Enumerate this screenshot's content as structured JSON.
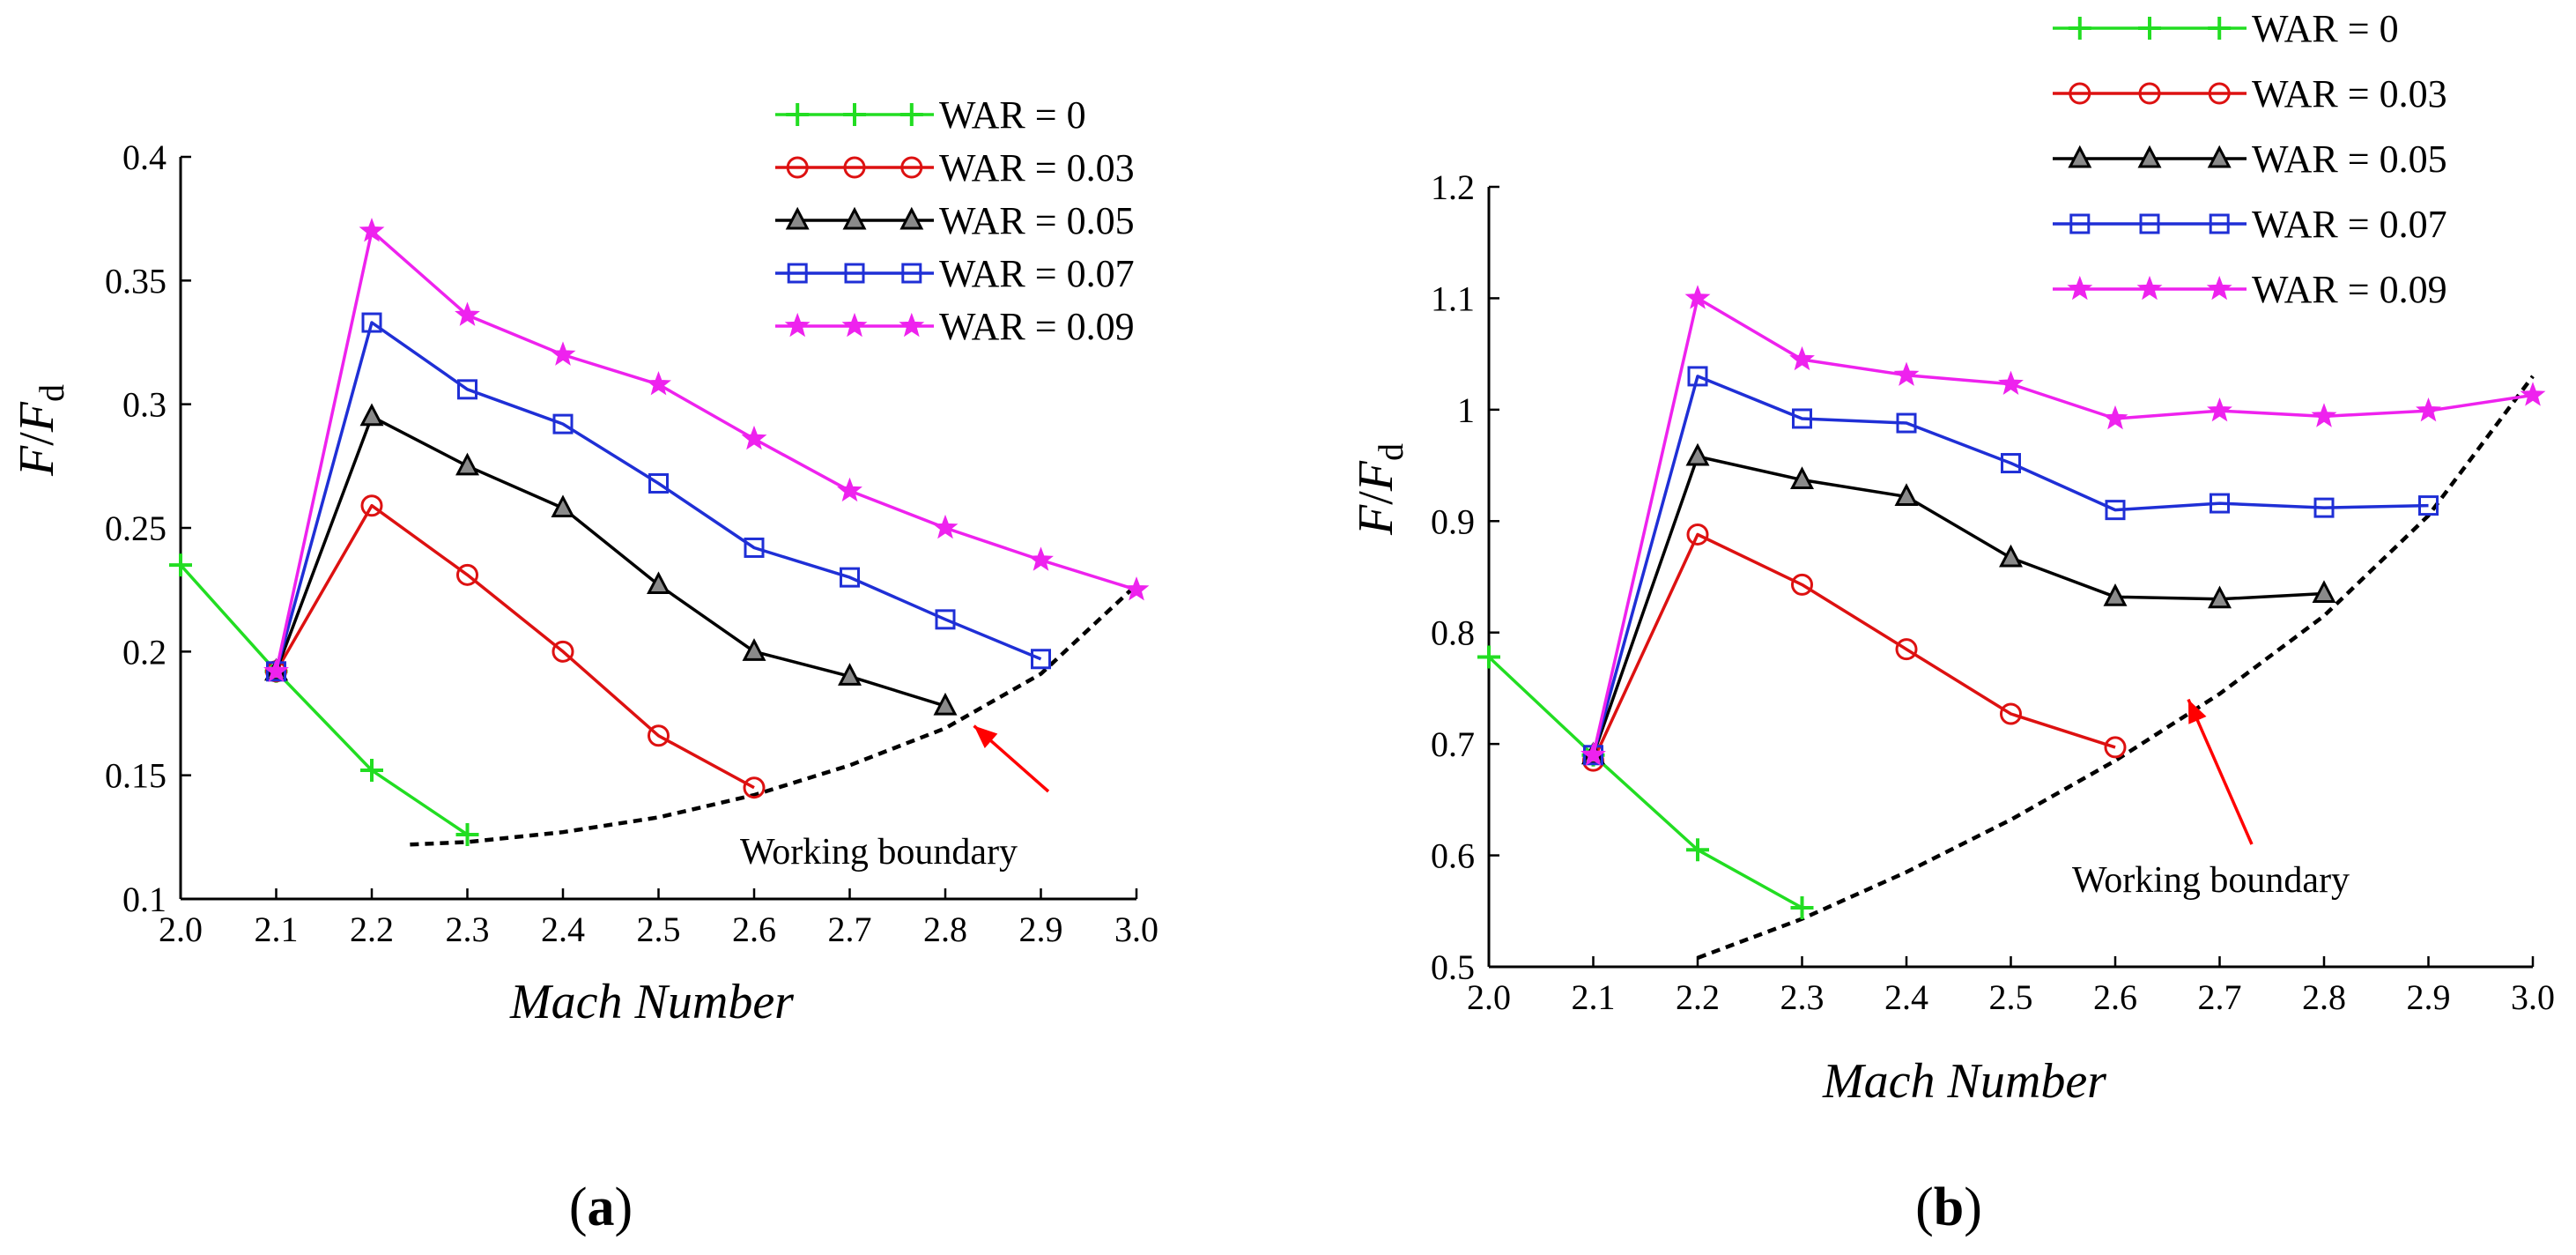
{
  "chart_data": [
    {
      "type": "line",
      "panel_label": {
        "open": "(",
        "letter": "a",
        "close": ")"
      },
      "title": "",
      "xlabel": "Mach Number",
      "ylabel": {
        "main": "F",
        "slash": "/",
        "F": "F",
        "sub": "d"
      },
      "xlim": [
        2.0,
        3.0
      ],
      "ylim": [
        0.1,
        0.4
      ],
      "xticks": [
        "2.0",
        "2.1",
        "2.2",
        "2.3",
        "2.4",
        "2.5",
        "2.6",
        "2.7",
        "2.8",
        "2.9",
        "3.0"
      ],
      "yticks": [
        "0.1",
        "0.15",
        "0.2",
        "0.25",
        "0.3",
        "0.35",
        "0.4"
      ],
      "legend_position": "top-right",
      "series": [
        {
          "name": "WAR = 0",
          "color": "#22dd22",
          "marker": "plus",
          "x": [
            2.0,
            2.1,
            2.2,
            2.3
          ],
          "y": [
            0.235,
            0.192,
            0.152,
            0.126
          ]
        },
        {
          "name": "WAR = 0.03",
          "color": "#dd1111",
          "marker": "circle",
          "x": [
            2.1,
            2.2,
            2.3,
            2.4,
            2.5,
            2.6
          ],
          "y": [
            0.192,
            0.259,
            0.231,
            0.2,
            0.166,
            0.145
          ]
        },
        {
          "name": "WAR = 0.05",
          "color": "#000000",
          "marker": "triangle",
          "x": [
            2.1,
            2.2,
            2.3,
            2.4,
            2.5,
            2.6,
            2.7,
            2.8
          ],
          "y": [
            0.192,
            0.295,
            0.275,
            0.258,
            0.227,
            0.2,
            0.19,
            0.178
          ]
        },
        {
          "name": "WAR = 0.07",
          "color": "#1f2fd6",
          "marker": "square",
          "x": [
            2.1,
            2.2,
            2.3,
            2.4,
            2.5,
            2.6,
            2.7,
            2.8,
            2.9
          ],
          "y": [
            0.192,
            0.333,
            0.306,
            0.292,
            0.268,
            0.242,
            0.23,
            0.213,
            0.197
          ]
        },
        {
          "name": "WAR = 0.09",
          "color": "#ee22ee",
          "marker": "star",
          "x": [
            2.1,
            2.2,
            2.3,
            2.4,
            2.5,
            2.6,
            2.7,
            2.8,
            2.9,
            3.0
          ],
          "y": [
            0.192,
            0.37,
            0.336,
            0.32,
            0.308,
            0.286,
            0.265,
            0.25,
            0.237,
            0.225
          ]
        }
      ],
      "boundary": {
        "label": "Working boundary",
        "x": [
          2.24,
          2.3,
          2.4,
          2.5,
          2.6,
          2.7,
          2.8,
          2.9,
          3.0
        ],
        "y": [
          0.122,
          0.123,
          0.127,
          0.133,
          0.142,
          0.154,
          0.169,
          0.191,
          0.227
        ],
        "arrow_to": [
          2.83,
          0.17
        ]
      }
    },
    {
      "type": "line",
      "panel_label": {
        "open": "(",
        "letter": "b",
        "close": ")"
      },
      "title": "",
      "xlabel": "Mach Number",
      "ylabel": {
        "main": "F",
        "slash": "/",
        "F": "F",
        "sub": "d"
      },
      "xlim": [
        2.0,
        3.0
      ],
      "ylim": [
        0.5,
        1.2
      ],
      "xticks": [
        "2.0",
        "2.1",
        "2.2",
        "2.3",
        "2.4",
        "2.5",
        "2.6",
        "2.7",
        "2.8",
        "2.9",
        "3.0"
      ],
      "yticks": [
        "0.5",
        "0.6",
        "0.7",
        "0.8",
        "0.9",
        "1",
        "1.1",
        "1.2"
      ],
      "legend_position": "top-right",
      "series": [
        {
          "name": "WAR = 0",
          "color": "#22dd22",
          "marker": "plus",
          "x": [
            2.0,
            2.1,
            2.2,
            2.3
          ],
          "y": [
            0.778,
            0.69,
            0.605,
            0.553
          ]
        },
        {
          "name": "WAR = 0.03",
          "color": "#dd1111",
          "marker": "circle",
          "x": [
            2.1,
            2.2,
            2.3,
            2.4,
            2.5,
            2.6
          ],
          "y": [
            0.685,
            0.888,
            0.843,
            0.785,
            0.727,
            0.697
          ]
        },
        {
          "name": "WAR = 0.05",
          "color": "#000000",
          "marker": "triangle",
          "x": [
            2.1,
            2.2,
            2.3,
            2.4,
            2.5,
            2.6,
            2.7,
            2.8
          ],
          "y": [
            0.69,
            0.958,
            0.937,
            0.922,
            0.867,
            0.832,
            0.83,
            0.835
          ]
        },
        {
          "name": "WAR = 0.07",
          "color": "#1f2fd6",
          "marker": "square",
          "x": [
            2.1,
            2.2,
            2.3,
            2.4,
            2.5,
            2.6,
            2.7,
            2.8,
            2.9
          ],
          "y": [
            0.69,
            1.03,
            0.992,
            0.988,
            0.952,
            0.91,
            0.916,
            0.912,
            0.914
          ]
        },
        {
          "name": "WAR = 0.09",
          "color": "#ee22ee",
          "marker": "star",
          "x": [
            2.1,
            2.2,
            2.3,
            2.4,
            2.5,
            2.6,
            2.7,
            2.8,
            2.9,
            3.0
          ],
          "y": [
            0.69,
            1.1,
            1.045,
            1.031,
            1.023,
            0.992,
            0.999,
            0.994,
            0.999,
            1.013
          ]
        }
      ],
      "boundary": {
        "label": "Working boundary",
        "x": [
          2.2,
          2.3,
          2.4,
          2.5,
          2.6,
          2.7,
          2.8,
          2.9,
          3.0
        ],
        "y": [
          0.508,
          0.543,
          0.585,
          0.632,
          0.685,
          0.745,
          0.815,
          0.905,
          1.03
        ],
        "arrow_to": [
          2.67,
          0.74
        ]
      }
    }
  ]
}
